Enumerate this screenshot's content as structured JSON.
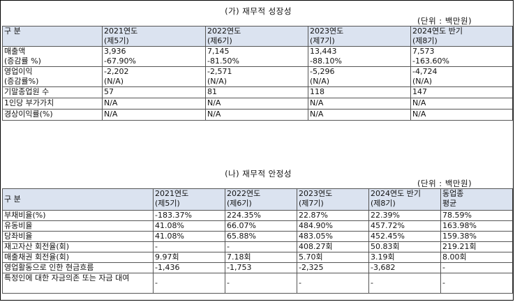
{
  "growth": {
    "title": "(가) 재무적 성장성",
    "unit": "(단위 : 백만원)",
    "header": {
      "label": "구 분",
      "cols": [
        [
          "2021연도",
          "(제5기)"
        ],
        [
          "2022연도",
          "(제6기)"
        ],
        [
          "2023연도",
          "(제7기)"
        ],
        [
          "2024연도 반기",
          "(제8기)"
        ]
      ]
    },
    "rows": [
      {
        "label": [
          "매출액",
          "(증감률 %)"
        ],
        "cells": [
          [
            "3,936",
            "-67.90%"
          ],
          [
            "7,145",
            "-81.50%"
          ],
          [
            "13,443",
            "-88.10%"
          ],
          [
            "7,573",
            "-163.60%"
          ]
        ]
      },
      {
        "label": [
          "영업이익",
          "(증감률%)"
        ],
        "cells": [
          [
            "-2,202",
            "(N/A)"
          ],
          [
            "-2,571",
            "(N/A)"
          ],
          [
            "-5,296",
            "(N/A)"
          ],
          [
            "-4,724",
            "(N/A)"
          ]
        ]
      },
      {
        "label": [
          "기말종업원 수"
        ],
        "cells": [
          [
            "57"
          ],
          [
            "81"
          ],
          [
            "118"
          ],
          [
            "147"
          ]
        ]
      },
      {
        "label": [
          "1인당 부가가치"
        ],
        "cells": [
          [
            "N/A"
          ],
          [
            "N/A"
          ],
          [
            "N/A"
          ],
          [
            "N/A"
          ]
        ]
      },
      {
        "label": [
          "경상이익률(%)"
        ],
        "cells": [
          [
            "N/A"
          ],
          [
            "N/A"
          ],
          [
            "N/A"
          ],
          [
            "N/A"
          ]
        ]
      }
    ]
  },
  "stability": {
    "title": "(나) 재무적 안정성",
    "unit": "(단위 : 백만원)",
    "header": {
      "label": "구 분",
      "cols": [
        [
          "2021연도",
          "(제5기)"
        ],
        [
          "2022연도",
          "(제6기)"
        ],
        [
          "2023연도",
          "(제7기)"
        ],
        [
          "2024연도 반기",
          "(제8기)"
        ],
        [
          "동업종",
          "평균"
        ]
      ]
    },
    "rows": [
      {
        "label": "부채비율(%)",
        "cells": [
          "-183.37%",
          "224.35%",
          "22.87%",
          "22.39%",
          "78.59%"
        ]
      },
      {
        "label": "유동비율",
        "cells": [
          "41.08%",
          "66.07%",
          "484.90%",
          "457.72%",
          "163.98%"
        ]
      },
      {
        "label": "당좌비율",
        "cells": [
          "41.08%",
          "65.88%",
          "483.05%",
          "452.45%",
          "159.38%"
        ]
      },
      {
        "label": "재고자산 회전율(회)",
        "cells": [
          "-",
          "-",
          "408.27회",
          "50.83회",
          "219.21회"
        ]
      },
      {
        "label": "매출채권 회전율(회)",
        "cells": [
          "9.97회",
          "7.18회",
          "5.70회",
          "3.19회",
          "8.00회"
        ]
      },
      {
        "label": "영업활동으로 인한 현금흐름",
        "cells": [
          "-1,436",
          "-1,753",
          "-2,325",
          "-3,682",
          "-"
        ]
      },
      {
        "label": "특정인에 대한 자금의존 또는 자금 대여",
        "cells": [
          "-",
          "-",
          "-",
          "-",
          "-"
        ]
      }
    ]
  }
}
